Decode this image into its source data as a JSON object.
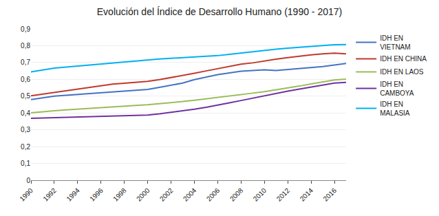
{
  "chart_data": {
    "type": "line",
    "title": "Evolución del Índice de Desarrollo Humano (1990 - 2017)",
    "x": [
      1990,
      1991,
      1992,
      1993,
      1994,
      1995,
      1996,
      1997,
      1998,
      1999,
      2000,
      2001,
      2002,
      2003,
      2004,
      2005,
      2006,
      2007,
      2008,
      2009,
      2010,
      2011,
      2012,
      2013,
      2014,
      2015,
      2016,
      2017
    ],
    "series": [
      {
        "name": "IDH EN\nVIETNAM",
        "color": "#4472c4",
        "values": [
          0.48,
          0.49,
          0.5,
          0.505,
          0.51,
          0.515,
          0.52,
          0.525,
          0.53,
          0.535,
          0.54,
          0.552,
          0.565,
          0.578,
          0.598,
          0.612,
          0.628,
          0.638,
          0.648,
          0.652,
          0.657,
          0.653,
          0.658,
          0.663,
          0.668,
          0.676,
          0.685,
          0.694
        ]
      },
      {
        "name": "IDH EN CHINA",
        "color": "#c0392b",
        "values": [
          0.502,
          0.512,
          0.522,
          0.532,
          0.542,
          0.552,
          0.562,
          0.572,
          0.577,
          0.582,
          0.588,
          0.598,
          0.61,
          0.622,
          0.636,
          0.65,
          0.664,
          0.678,
          0.69,
          0.698,
          0.71,
          0.72,
          0.729,
          0.738,
          0.746,
          0.752,
          0.756,
          0.752
        ]
      },
      {
        "name": "IDH EN LAOS",
        "color": "#9bbb59",
        "values": [
          0.401,
          0.408,
          0.413,
          0.418,
          0.423,
          0.428,
          0.433,
          0.437,
          0.441,
          0.445,
          0.449,
          0.455,
          0.461,
          0.468,
          0.476,
          0.484,
          0.492,
          0.5,
          0.509,
          0.518,
          0.527,
          0.537,
          0.548,
          0.56,
          0.573,
          0.586,
          0.596,
          0.601
        ]
      },
      {
        "name": "IDH EN\nCAMBOYA",
        "color": "#7030a0",
        "values": [
          0.368,
          0.37,
          0.371,
          0.372,
          0.374,
          0.376,
          0.378,
          0.38,
          0.382,
          0.385,
          0.388,
          0.395,
          0.403,
          0.412,
          0.422,
          0.434,
          0.446,
          0.46,
          0.474,
          0.488,
          0.504,
          0.518,
          0.53,
          0.542,
          0.553,
          0.566,
          0.578,
          0.582
        ]
      },
      {
        "name": "IDH EN\nMALASIA",
        "color": "#00b0f0",
        "values": [
          0.644,
          0.657,
          0.667,
          0.673,
          0.679,
          0.686,
          0.693,
          0.699,
          0.705,
          0.711,
          0.717,
          0.721,
          0.725,
          0.729,
          0.733,
          0.737,
          0.741,
          0.749,
          0.757,
          0.765,
          0.773,
          0.779,
          0.785,
          0.79,
          0.796,
          0.801,
          0.806,
          0.807
        ]
      }
    ],
    "xlim": [
      1990,
      2017
    ],
    "xticks": [
      1990,
      1992,
      1994,
      1996,
      1998,
      2000,
      2002,
      2004,
      2006,
      2008,
      2010,
      2012,
      2014,
      2016
    ],
    "ylim": [
      0,
      0.9
    ],
    "yticks": [
      0,
      {
        "value": 0.1,
        "label": "0,1"
      },
      {
        "value": 0.2,
        "label": "0,2"
      },
      {
        "value": 0.3,
        "label": "0,3"
      },
      {
        "value": 0.4,
        "label": "0,4"
      },
      {
        "value": 0.5,
        "label": "0,5"
      },
      {
        "value": 0.6,
        "label": "0,6"
      },
      {
        "value": 0.7,
        "label": "0,7"
      },
      {
        "value": 0.8,
        "label": "0,8"
      },
      {
        "value": 0.9,
        "label": "0,9"
      }
    ],
    "grid": true,
    "legend": "right"
  }
}
